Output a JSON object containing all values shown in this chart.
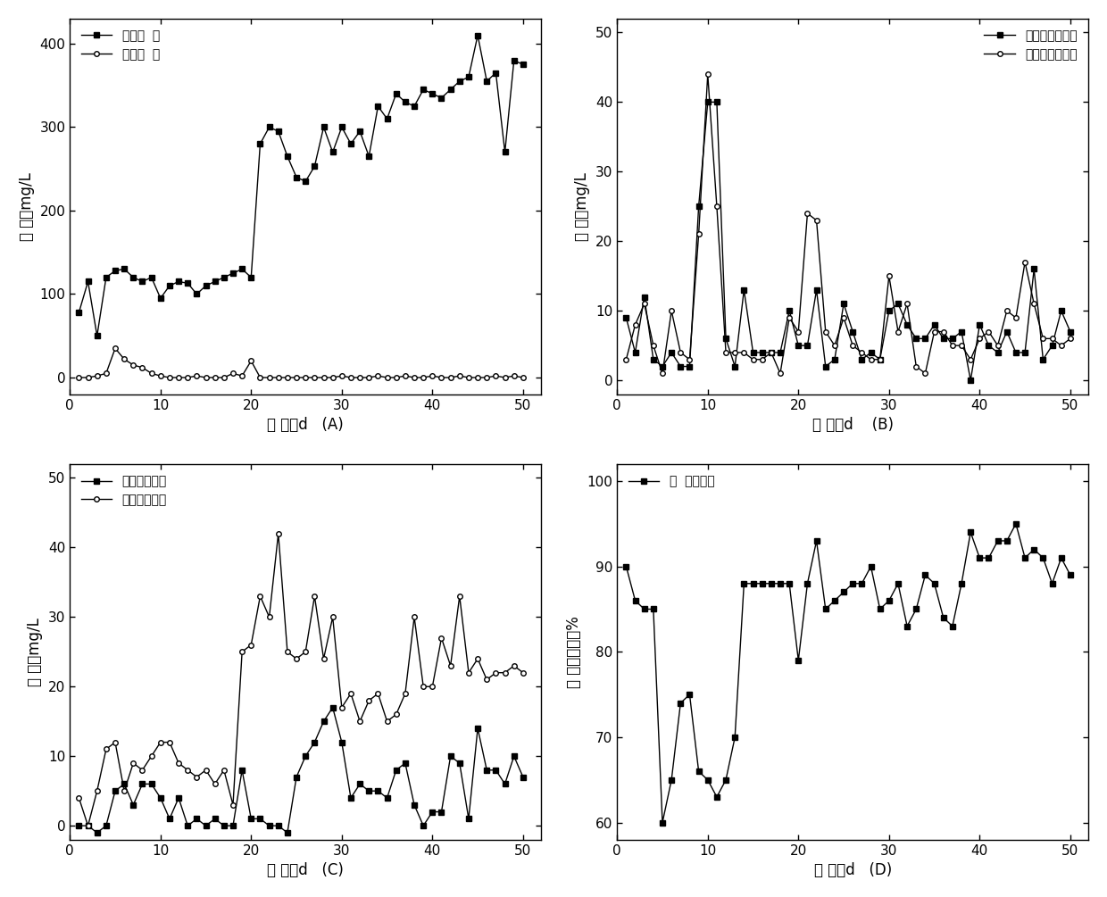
{
  "A": {
    "inlet_x": [
      1,
      2,
      3,
      4,
      5,
      6,
      7,
      8,
      9,
      10,
      11,
      12,
      13,
      14,
      15,
      16,
      17,
      18,
      19,
      20,
      21,
      22,
      23,
      24,
      25,
      26,
      27,
      28,
      29,
      30,
      31,
      32,
      33,
      34,
      35,
      36,
      37,
      38,
      39,
      40,
      41,
      42,
      43,
      44,
      45,
      46,
      47,
      48,
      49,
      50
    ],
    "inlet_y": [
      78,
      115,
      50,
      120,
      128,
      130,
      120,
      115,
      120,
      95,
      110,
      115,
      113,
      100,
      110,
      115,
      120,
      125,
      130,
      120,
      280,
      300,
      295,
      265,
      240,
      235,
      253,
      300,
      270,
      300,
      280,
      295,
      265,
      325,
      310,
      340,
      330,
      325,
      345,
      340,
      335,
      345,
      355,
      360,
      410,
      355,
      365,
      270,
      380,
      375
    ],
    "outlet_x": [
      1,
      2,
      3,
      4,
      5,
      6,
      7,
      8,
      9,
      10,
      11,
      12,
      13,
      14,
      15,
      16,
      17,
      18,
      19,
      20,
      21,
      22,
      23,
      24,
      25,
      26,
      27,
      28,
      29,
      30,
      31,
      32,
      33,
      34,
      35,
      36,
      37,
      38,
      39,
      40,
      41,
      42,
      43,
      44,
      45,
      46,
      47,
      48,
      49,
      50
    ],
    "outlet_y": [
      0,
      0,
      2,
      5,
      35,
      22,
      15,
      12,
      5,
      2,
      0,
      0,
      0,
      2,
      0,
      0,
      0,
      5,
      2,
      20,
      0,
      0,
      0,
      0,
      0,
      0,
      0,
      0,
      0,
      2,
      0,
      0,
      0,
      2,
      0,
      0,
      2,
      0,
      0,
      2,
      0,
      0,
      2,
      0,
      0,
      0,
      2,
      0,
      2,
      0
    ],
    "ylabel": "浓 度，mg/L",
    "xlabel": "时 间，d   (A)",
    "legend1": "进水氨  氮",
    "legend2": "出水氨  氮",
    "ylim": [
      -20,
      430
    ],
    "yticks": [
      0,
      100,
      200,
      300,
      400
    ]
  },
  "B": {
    "inlet_x": [
      1,
      2,
      3,
      4,
      5,
      6,
      7,
      8,
      9,
      10,
      11,
      12,
      13,
      14,
      15,
      16,
      17,
      18,
      19,
      20,
      21,
      22,
      23,
      24,
      25,
      26,
      27,
      28,
      29,
      30,
      31,
      32,
      33,
      34,
      35,
      36,
      37,
      38,
      39,
      40,
      41,
      42,
      43,
      44,
      45,
      46,
      47,
      48,
      49,
      50
    ],
    "inlet_y": [
      9,
      4,
      12,
      3,
      2,
      4,
      2,
      2,
      25,
      40,
      40,
      6,
      2,
      13,
      4,
      4,
      4,
      4,
      10,
      5,
      5,
      13,
      2,
      3,
      11,
      7,
      3,
      4,
      3,
      10,
      11,
      8,
      6,
      6,
      8,
      6,
      6,
      7,
      0,
      8,
      5,
      4,
      7,
      4,
      4,
      16,
      3,
      5,
      10,
      7
    ],
    "outlet_x": [
      1,
      2,
      3,
      4,
      5,
      6,
      7,
      8,
      9,
      10,
      11,
      12,
      13,
      14,
      15,
      16,
      17,
      18,
      19,
      20,
      21,
      22,
      23,
      24,
      25,
      26,
      27,
      28,
      29,
      30,
      31,
      32,
      33,
      34,
      35,
      36,
      37,
      38,
      39,
      40,
      41,
      42,
      43,
      44,
      45,
      46,
      47,
      48,
      49,
      50
    ],
    "outlet_y": [
      3,
      8,
      11,
      5,
      1,
      10,
      4,
      3,
      21,
      44,
      25,
      4,
      4,
      4,
      3,
      3,
      4,
      1,
      9,
      7,
      24,
      23,
      7,
      5,
      9,
      5,
      4,
      3,
      3,
      15,
      7,
      11,
      2,
      1,
      7,
      7,
      5,
      5,
      3,
      6,
      7,
      5,
      10,
      9,
      17,
      11,
      6,
      6,
      5,
      6
    ],
    "ylabel": "浓 度，mg/L",
    "xlabel": "时 间，d    (B)",
    "legend1": "进水亚确酸盐氮",
    "legend2": "出水亚确酸盐氮",
    "ylim": [
      -2,
      52
    ],
    "yticks": [
      0,
      10,
      20,
      30,
      40,
      50
    ]
  },
  "C": {
    "inlet_x": [
      1,
      2,
      3,
      4,
      5,
      6,
      7,
      8,
      9,
      10,
      11,
      12,
      13,
      14,
      15,
      16,
      17,
      18,
      19,
      20,
      21,
      22,
      23,
      24,
      25,
      26,
      27,
      28,
      29,
      30,
      31,
      32,
      33,
      34,
      35,
      36,
      37,
      38,
      39,
      40,
      41,
      42,
      43,
      44,
      45,
      46,
      47,
      48,
      49,
      50
    ],
    "inlet_y": [
      0,
      0,
      -1,
      0,
      5,
      6,
      3,
      6,
      6,
      4,
      1,
      4,
      0,
      1,
      0,
      1,
      0,
      0,
      8,
      1,
      1,
      0,
      0,
      -1,
      7,
      10,
      12,
      15,
      17,
      12,
      4,
      6,
      5,
      5,
      4,
      8,
      9,
      3,
      0,
      2,
      2,
      10,
      9,
      1,
      14,
      8,
      8,
      6,
      10,
      7
    ],
    "outlet_x": [
      1,
      2,
      3,
      4,
      5,
      6,
      7,
      8,
      9,
      10,
      11,
      12,
      13,
      14,
      15,
      16,
      17,
      18,
      19,
      20,
      21,
      22,
      23,
      24,
      25,
      26,
      27,
      28,
      29,
      30,
      31,
      32,
      33,
      34,
      35,
      36,
      37,
      38,
      39,
      40,
      41,
      42,
      43,
      44,
      45,
      46,
      47,
      48,
      49,
      50
    ],
    "outlet_y": [
      4,
      0,
      5,
      11,
      12,
      5,
      9,
      8,
      10,
      12,
      12,
      9,
      8,
      7,
      8,
      6,
      8,
      3,
      25,
      26,
      33,
      30,
      42,
      25,
      24,
      25,
      33,
      24,
      30,
      17,
      19,
      15,
      18,
      19,
      15,
      16,
      19,
      30,
      20,
      20,
      27,
      23,
      33,
      22,
      24,
      21,
      22,
      22,
      23,
      22
    ],
    "ylabel": "浓 度，mg/L",
    "xlabel": "时 间，d   (C)",
    "legend1": "进水确酸盐氮",
    "legend2": "出水确酸盐氮",
    "ylim": [
      -2,
      52
    ],
    "yticks": [
      0,
      10,
      20,
      30,
      40,
      50
    ]
  },
  "D": {
    "x": [
      1,
      2,
      3,
      4,
      5,
      6,
      7,
      8,
      9,
      10,
      11,
      12,
      13,
      14,
      15,
      16,
      17,
      18,
      19,
      20,
      21,
      22,
      23,
      24,
      25,
      26,
      27,
      28,
      29,
      30,
      31,
      32,
      33,
      34,
      35,
      36,
      37,
      38,
      39,
      40,
      41,
      42,
      43,
      44,
      45,
      46,
      47,
      48,
      49,
      50
    ],
    "y": [
      90,
      86,
      85,
      85,
      60,
      65,
      74,
      75,
      66,
      65,
      63,
      65,
      70,
      88,
      88,
      88,
      88,
      88,
      88,
      79,
      88,
      93,
      85,
      86,
      87,
      88,
      88,
      90,
      85,
      86,
      88,
      83,
      85,
      89,
      88,
      84,
      83,
      88,
      94,
      91,
      91,
      93,
      93,
      95,
      91,
      92,
      91,
      88,
      91,
      89
    ],
    "ylabel": "总 氮去除率，%",
    "xlabel": "时 间，d   (D)",
    "legend1": "总  氮去除率",
    "ylim": [
      58,
      102
    ],
    "yticks": [
      60,
      70,
      80,
      90,
      100
    ]
  }
}
